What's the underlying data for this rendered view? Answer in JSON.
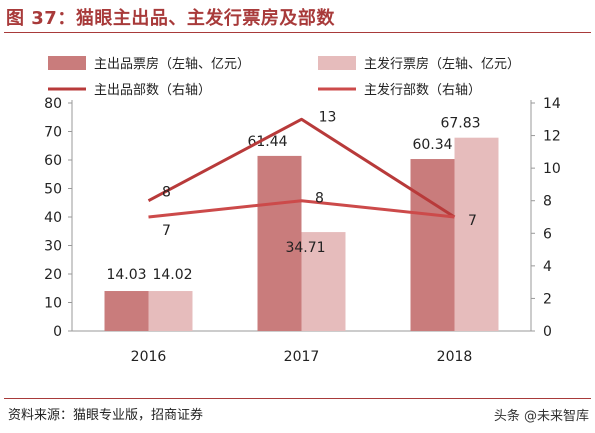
{
  "figure": {
    "title": "图 37：猫眼主出品、主发行票房及部数",
    "source": "资料来源：猫眼专业版，招商证券",
    "watermark": "头条 @未来智库"
  },
  "colors": {
    "title": "#a83a3a",
    "bar_series_1": "#c97c7c",
    "bar_series_2": "#e6bcbc",
    "line_series_1": "#b83a3a",
    "line_series_2": "#cc4a4a",
    "axis": "#999999",
    "text": "#222222"
  },
  "chart_data": {
    "type": "bar",
    "categories": [
      "2016",
      "2017",
      "2018"
    ],
    "ylim": [
      0,
      80
    ],
    "yticks": [
      0,
      10,
      20,
      30,
      40,
      50,
      60,
      70,
      80
    ],
    "y2lim": [
      0,
      14
    ],
    "y2ticks": [
      0,
      2,
      4,
      6,
      8,
      10,
      12,
      14
    ],
    "grid": false,
    "legend": "top",
    "series": [
      {
        "name": "主出品票房（左轴、亿元）",
        "type": "bar",
        "axis": "left",
        "values": [
          14.03,
          61.44,
          60.34
        ],
        "labels": [
          "14.03",
          "61.44",
          "60.34"
        ]
      },
      {
        "name": "主发行票房（左轴、亿元）",
        "type": "bar",
        "axis": "left",
        "values": [
          14.02,
          34.71,
          67.83
        ],
        "labels": [
          "14.02",
          "34.71",
          "67.83"
        ]
      },
      {
        "name": "主出品部数（右轴）",
        "type": "line",
        "axis": "right",
        "values": [
          8,
          13,
          7
        ],
        "labels": [
          "8",
          "13",
          "7"
        ]
      },
      {
        "name": "主发行部数（右轴）",
        "type": "line",
        "axis": "right",
        "values": [
          7,
          8,
          7
        ],
        "labels": [
          "7",
          "8",
          "7"
        ]
      }
    ]
  }
}
